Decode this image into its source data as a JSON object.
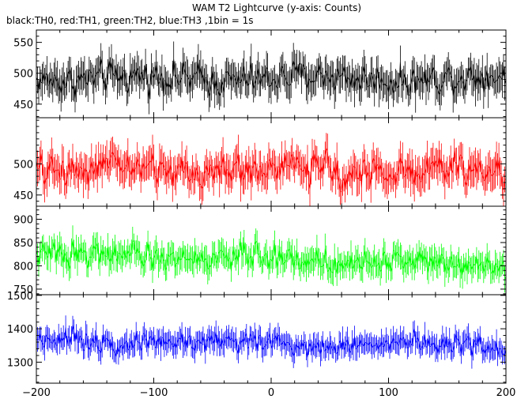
{
  "title": "WAM T2 Lightcurve (y-axis: Counts)",
  "subtitle": "black:TH0, red:TH1, green:TH2, blue:TH3 ,1bin = 1s",
  "chart_data": [
    {
      "type": "line",
      "name": "TH0",
      "color": "#000000",
      "xlim": [
        -200,
        200
      ],
      "ylim": [
        428,
        570
      ],
      "yticks": [
        450,
        500,
        550
      ],
      "mean": 492,
      "trend": 0.0,
      "noise": 30,
      "x": {
        "start": -200,
        "end": 200,
        "step": 1
      }
    },
    {
      "type": "line",
      "name": "TH1",
      "color": "#ff0000",
      "xlim": [
        -200,
        200
      ],
      "ylim": [
        432,
        574
      ],
      "yticks": [
        450,
        500
      ],
      "mean": 490,
      "trend": -0.0125,
      "noise": 30,
      "x": {
        "start": -200,
        "end": 200,
        "step": 1
      }
    },
    {
      "type": "line",
      "name": "TH2",
      "color": "#00ff00",
      "xlim": [
        -200,
        200
      ],
      "ylim": [
        738,
        928
      ],
      "yticks": [
        750,
        800,
        850,
        900
      ],
      "mean": 815,
      "trend": -0.05,
      "noise": 32,
      "x": {
        "start": -200,
        "end": 200,
        "step": 1
      }
    },
    {
      "type": "line",
      "name": "TH3",
      "color": "#0000ff",
      "xlim": [
        -200,
        200
      ],
      "ylim": [
        1237,
        1502
      ],
      "yticks": [
        1300,
        1400,
        1500
      ],
      "mean": 1358,
      "trend": -0.05,
      "noise": 38,
      "x": {
        "start": -200,
        "end": 200,
        "step": 1
      }
    }
  ],
  "xaxis": {
    "ticks": [
      -200,
      -100,
      0,
      100,
      200
    ],
    "tick_labels": [
      "−200",
      "−100",
      "0",
      "100",
      "200"
    ]
  }
}
